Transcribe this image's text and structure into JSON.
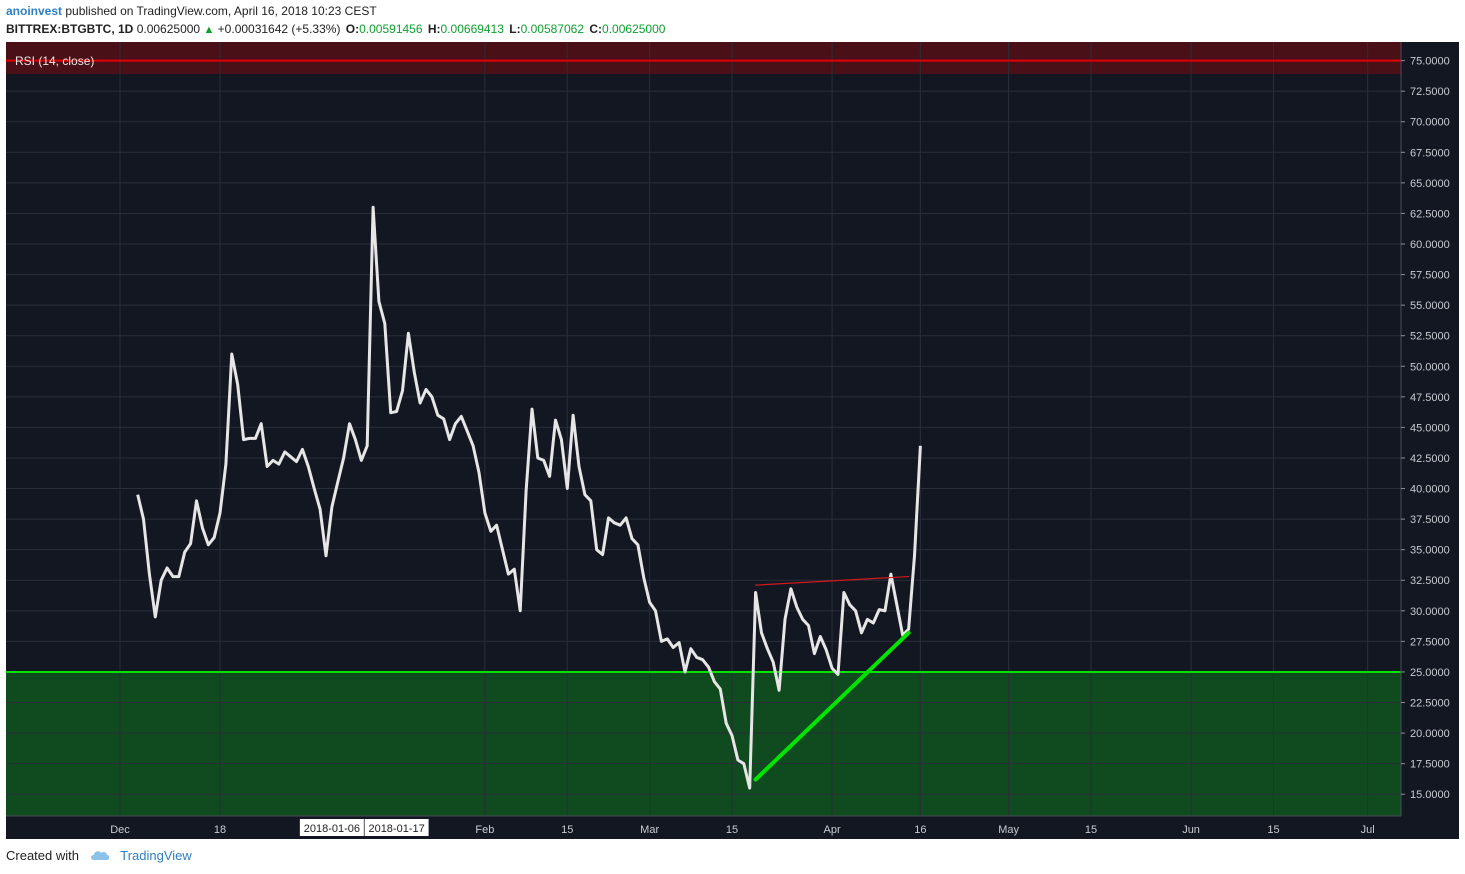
{
  "header": {
    "author": "anoinvest",
    "published_text": "published on TradingView.com, April 16, 2018 10:23 CEST",
    "symbol": "BITTREX:BTGBTC, 1D",
    "price": "0.00625000",
    "change": "+0.00031642 (+5.33%)",
    "open_label": "O:",
    "open": "0.00591456",
    "high_label": "H:",
    "high": "0.00669413",
    "low_label": "L:",
    "low": "0.00587062",
    "close_label": "C:",
    "close": "0.00625000"
  },
  "indicator_label": "RSI (14, close)",
  "footer": {
    "created_with": "Created with",
    "brand": "TradingView"
  },
  "colors": {
    "background": "#131722",
    "grid": "#2a2e39",
    "rsi_line": "#e6e6e6",
    "overbought_line": "#e00000",
    "oversold_line": "#00e400",
    "oversold_fill": "#0f4b1e",
    "overbought_fill": "#4a1018",
    "trendline_support": "#00e400",
    "trendline_resistance": "#d11a1a",
    "axis_text": "#c9cbd1"
  },
  "chart_data": {
    "type": "line",
    "title": "RSI (14, close)",
    "ylim": [
      13,
      76
    ],
    "y_ticks": [
      "75.0000",
      "72.5000",
      "70.0000",
      "67.5000",
      "65.0000",
      "62.5000",
      "60.0000",
      "57.5000",
      "55.0000",
      "52.5000",
      "50.0000",
      "47.5000",
      "45.0000",
      "42.5000",
      "40.0000",
      "37.5000",
      "35.0000",
      "32.5000",
      "30.0000",
      "27.5000",
      "25.0000",
      "22.5000",
      "20.0000",
      "17.5000",
      "15.0000"
    ],
    "x_ticks": [
      {
        "label": "Dec",
        "day": 0
      },
      {
        "label": "18",
        "day": 17
      },
      {
        "label": "Feb",
        "day": 62
      },
      {
        "label": "15",
        "day": 76
      },
      {
        "label": "Mar",
        "day": 90
      },
      {
        "label": "15",
        "day": 104
      },
      {
        "label": "Apr",
        "day": 121
      },
      {
        "label": "16",
        "day": 136
      },
      {
        "label": "May",
        "day": 151
      },
      {
        "label": "15",
        "day": 165
      },
      {
        "label": "Jun",
        "day": 182
      },
      {
        "label": "15",
        "day": 196
      },
      {
        "label": "Jul",
        "day": 212
      }
    ],
    "x_overlay_labels": [
      "2018-01-06",
      "2018-01-17"
    ],
    "x_overlay_days": [
      36,
      47
    ],
    "levels": {
      "overbought": 75,
      "oversold": 25
    },
    "grid": true,
    "series": [
      {
        "values": [
          [
            3,
            39.5
          ],
          [
            4,
            37.5
          ],
          [
            5,
            33
          ],
          [
            6,
            29.5
          ],
          [
            7,
            32.5
          ],
          [
            8,
            33.5
          ],
          [
            9,
            32.8
          ],
          [
            10,
            32.8
          ],
          [
            11,
            34.8
          ],
          [
            12,
            35.5
          ],
          [
            13,
            39
          ],
          [
            14,
            36.8
          ],
          [
            15,
            35.4
          ],
          [
            16,
            36
          ],
          [
            17,
            38
          ],
          [
            18,
            42
          ],
          [
            19,
            51
          ],
          [
            20,
            48.5
          ],
          [
            21,
            44
          ],
          [
            22,
            44.1
          ],
          [
            23,
            44.1
          ],
          [
            24,
            45.3
          ],
          [
            25,
            41.8
          ],
          [
            26,
            42.3
          ],
          [
            27,
            42
          ],
          [
            28,
            43
          ],
          [
            29,
            42.6
          ],
          [
            30,
            42.2
          ],
          [
            31,
            43.2
          ],
          [
            32,
            41.8
          ],
          [
            33,
            40
          ],
          [
            34,
            38.3
          ],
          [
            35,
            34.5
          ],
          [
            36,
            38.5
          ],
          [
            37,
            40.5
          ],
          [
            38,
            42.5
          ],
          [
            39,
            45.3
          ],
          [
            40,
            44
          ],
          [
            41,
            42.3
          ],
          [
            42,
            43.5
          ],
          [
            43,
            63
          ],
          [
            44,
            55.3
          ],
          [
            45,
            53.5
          ],
          [
            46,
            46.2
          ],
          [
            47,
            46.3
          ],
          [
            48,
            48
          ],
          [
            49,
            52.7
          ],
          [
            50,
            49.5
          ],
          [
            51,
            47
          ],
          [
            52,
            48.1
          ],
          [
            53,
            47.5
          ],
          [
            54,
            46
          ],
          [
            55,
            45.7
          ],
          [
            56,
            44
          ],
          [
            57,
            45.3
          ],
          [
            58,
            45.9
          ],
          [
            59,
            44.7
          ],
          [
            60,
            43.5
          ],
          [
            61,
            41.3
          ],
          [
            62,
            38
          ],
          [
            63,
            36.5
          ],
          [
            64,
            37
          ],
          [
            65,
            35
          ],
          [
            66,
            33
          ],
          [
            67,
            33.4
          ],
          [
            68,
            30
          ],
          [
            69,
            39.8
          ],
          [
            70,
            46.5
          ],
          [
            71,
            42.5
          ],
          [
            72,
            42.3
          ],
          [
            73,
            41
          ],
          [
            74,
            45.6
          ],
          [
            75,
            44
          ],
          [
            76,
            40
          ],
          [
            77,
            46
          ],
          [
            78,
            41.8
          ],
          [
            79,
            39.5
          ],
          [
            80,
            39
          ],
          [
            81,
            35
          ],
          [
            82,
            34.6
          ],
          [
            83,
            37.6
          ],
          [
            84,
            37.2
          ],
          [
            85,
            37
          ],
          [
            86,
            37.6
          ],
          [
            87,
            35.9
          ],
          [
            88,
            35.4
          ],
          [
            89,
            32.7
          ],
          [
            90,
            30.7
          ],
          [
            91,
            30
          ],
          [
            92,
            27.5
          ],
          [
            93,
            27.7
          ],
          [
            94,
            27
          ],
          [
            95,
            27.4
          ],
          [
            96,
            25
          ],
          [
            97,
            26.9
          ],
          [
            98,
            26.2
          ],
          [
            99,
            26
          ],
          [
            100,
            25.4
          ],
          [
            101,
            24.2
          ],
          [
            102,
            23.6
          ],
          [
            103,
            20.8
          ],
          [
            104,
            19.8
          ],
          [
            105,
            17.8
          ],
          [
            106,
            17.5
          ],
          [
            107,
            15.5
          ],
          [
            108,
            31.5
          ],
          [
            109,
            28.2
          ],
          [
            110,
            26.9
          ],
          [
            111,
            25.8
          ],
          [
            112,
            23.5
          ],
          [
            113,
            29.3
          ],
          [
            114,
            31.8
          ],
          [
            115,
            30.3
          ],
          [
            116,
            29.3
          ],
          [
            117,
            28.8
          ],
          [
            118,
            26.5
          ],
          [
            119,
            27.9
          ],
          [
            120,
            26.8
          ],
          [
            121,
            25.3
          ],
          [
            122,
            24.8
          ],
          [
            123,
            31.5
          ],
          [
            124,
            30.5
          ],
          [
            125,
            30
          ],
          [
            126,
            28.2
          ],
          [
            127,
            29.3
          ],
          [
            128,
            29
          ],
          [
            129,
            30.1
          ],
          [
            130,
            30
          ],
          [
            131,
            33
          ],
          [
            132,
            30.5
          ],
          [
            133,
            28
          ],
          [
            134,
            28.5
          ],
          [
            135,
            34.5
          ],
          [
            136,
            43.5
          ]
        ]
      }
    ],
    "annotations": [
      {
        "type": "trendline",
        "color": "#00e400",
        "from": [
          108,
          16.2
        ],
        "to": [
          134,
          28.2
        ]
      },
      {
        "type": "trendline",
        "color": "#d11a1a",
        "from": [
          108,
          32.1
        ],
        "to": [
          134,
          32.8
        ]
      }
    ]
  }
}
